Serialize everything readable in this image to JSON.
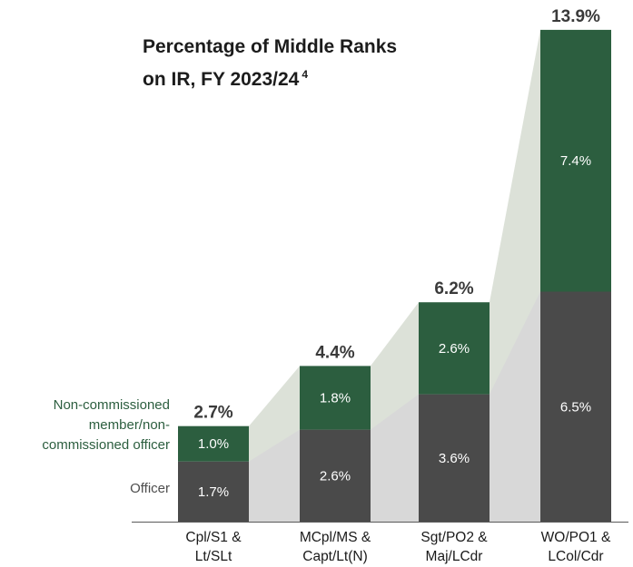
{
  "page": {
    "background": "#ffffff"
  },
  "title": {
    "line1": "Percentage of Middle Ranks",
    "line2": "on IR, FY 2023/24",
    "footnote": "4"
  },
  "legend": {
    "ncm": {
      "lines": [
        "Non-commissioned",
        "member/non-",
        "commissioned officer"
      ],
      "color": "#2c5e3f"
    },
    "officer": {
      "label": "Officer",
      "color": "#4d4d4d"
    }
  },
  "chart_data": {
    "type": "bar",
    "stacked": true,
    "title": "Percentage of Middle Ranks on IR, FY 2023/24",
    "footnote_marker": "4",
    "categories": [
      "Cpl/S1 & Lt/SLt",
      "MCpl/MS & Capt/Lt(N)",
      "Sgt/PO2 & Maj/LCdr",
      "WO/PO1 & LCol/Cdr"
    ],
    "category_lines": [
      [
        "Cpl/S1 &",
        "Lt/SLt"
      ],
      [
        "MCpl/MS &",
        "Capt/Lt(N)"
      ],
      [
        "Sgt/PO2 &",
        "Maj/LCdr"
      ],
      [
        "WO/PO1 &",
        "LCol/Cdr"
      ]
    ],
    "series": [
      {
        "name": "Officer",
        "values": [
          1.7,
          2.6,
          3.6,
          6.5
        ],
        "labels": [
          "1.7%",
          "2.6%",
          "3.6%",
          "6.5%"
        ],
        "color": "#4a4a4a"
      },
      {
        "name": "Non-commissioned member/non-commissioned officer",
        "values": [
          1.0,
          1.8,
          2.6,
          7.4
        ],
        "labels": [
          "1.0%",
          "1.8%",
          "2.6%",
          "7.4%"
        ],
        "color": "#2c5e3f"
      }
    ],
    "totals": {
      "values": [
        2.7,
        4.4,
        6.2,
        13.9
      ],
      "labels": [
        "2.7%",
        "4.4%",
        "6.2%",
        "13.9%"
      ]
    },
    "ylim": [
      0,
      13.9
    ],
    "value_label_color": "#ffffff",
    "total_label_color": "#3a3a3a",
    "band_colors": {
      "ncm": "#dce1d8",
      "officer": "#d8d8d8"
    },
    "axis_color": "#595959",
    "category_label_color": "#1a1a1a",
    "legend_position": "left",
    "grid": false
  }
}
